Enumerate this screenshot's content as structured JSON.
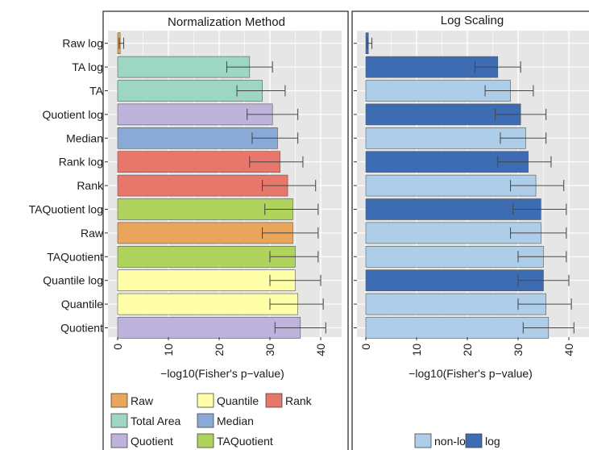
{
  "chart_data": [
    {
      "type": "bar",
      "orientation": "horizontal",
      "title": "Normalization Method",
      "xlabel": "−log10(Fisher's p−value)",
      "xlim": [
        0,
        43
      ],
      "xticks": [
        0,
        10,
        20,
        30,
        40
      ],
      "grid": true,
      "categories": [
        "Raw log",
        "TA log",
        "TA",
        "Quotient log",
        "Median",
        "Rank log",
        "Rank",
        "TAQuotient log",
        "Raw",
        "TAQuotient",
        "Quantile log",
        "Quantile",
        "Quotient"
      ],
      "values": [
        0.5,
        26,
        28.5,
        30.5,
        31.5,
        32,
        33.5,
        34.5,
        34.5,
        35,
        35,
        35.5,
        36
      ],
      "error": [
        [
          0.3,
          1.2
        ],
        [
          21.5,
          30.5
        ],
        [
          23.5,
          33
        ],
        [
          25.5,
          35.5
        ],
        [
          26.5,
          35.5
        ],
        [
          26,
          36.5
        ],
        [
          28.5,
          39
        ],
        [
          29,
          39.5
        ],
        [
          28.5,
          39.5
        ],
        [
          30,
          39.5
        ],
        [
          30,
          40
        ],
        [
          30,
          40.5
        ],
        [
          31,
          41
        ]
      ],
      "bar_groups": [
        "Raw",
        "Total Area",
        "Total Area",
        "Quotient",
        "Median",
        "Rank",
        "Rank",
        "TAQuotient",
        "Raw",
        "TAQuotient",
        "Quantile",
        "Quantile",
        "Quotient"
      ],
      "legend": {
        "placement": "bottom",
        "items": [
          {
            "name": "Raw",
            "color": "#E9A55A"
          },
          {
            "name": "Quantile",
            "color": "#FFFFA8"
          },
          {
            "name": "Rank",
            "color": "#E7776A"
          },
          {
            "name": "Total Area",
            "color": "#9ED6C4"
          },
          {
            "name": "Median",
            "color": "#89A9D6"
          },
          {
            "name": "Quotient",
            "color": "#BEB3DC"
          },
          {
            "name": "TAQuotient",
            "color": "#AFD35C"
          }
        ]
      }
    },
    {
      "type": "bar",
      "orientation": "horizontal",
      "title": "Log Scaling",
      "xlabel": "−log10(Fisher's p−value)",
      "xlim": [
        0,
        43
      ],
      "xticks": [
        0,
        10,
        20,
        30,
        40
      ],
      "grid": true,
      "categories": [
        "Raw log",
        "TA log",
        "TA",
        "Quotient log",
        "Median",
        "Rank log",
        "Rank",
        "TAQuotient log",
        "Raw",
        "TAQuotient",
        "Quantile log",
        "Quantile",
        "Quotient"
      ],
      "values": [
        0.5,
        26,
        28.5,
        30.5,
        31.5,
        32,
        33.5,
        34.5,
        34.5,
        35,
        35,
        35.5,
        36
      ],
      "error": [
        [
          0.3,
          1.2
        ],
        [
          21.5,
          30.5
        ],
        [
          23.5,
          33
        ],
        [
          25.5,
          35.5
        ],
        [
          26.5,
          35.5
        ],
        [
          26,
          36.5
        ],
        [
          28.5,
          39
        ],
        [
          29,
          39.5
        ],
        [
          28.5,
          39.5
        ],
        [
          30,
          39.5
        ],
        [
          30,
          40
        ],
        [
          30,
          40.5
        ],
        [
          31,
          41
        ]
      ],
      "bar_groups": [
        "log",
        "log",
        "non-log",
        "log",
        "non-log",
        "log",
        "non-log",
        "log",
        "non-log",
        "non-log",
        "log",
        "non-log",
        "non-log"
      ],
      "legend": {
        "placement": "bottom",
        "items": [
          {
            "name": "non-log",
            "color": "#AECDE8"
          },
          {
            "name": "log",
            "color": "#3E6CB3"
          }
        ]
      }
    }
  ]
}
